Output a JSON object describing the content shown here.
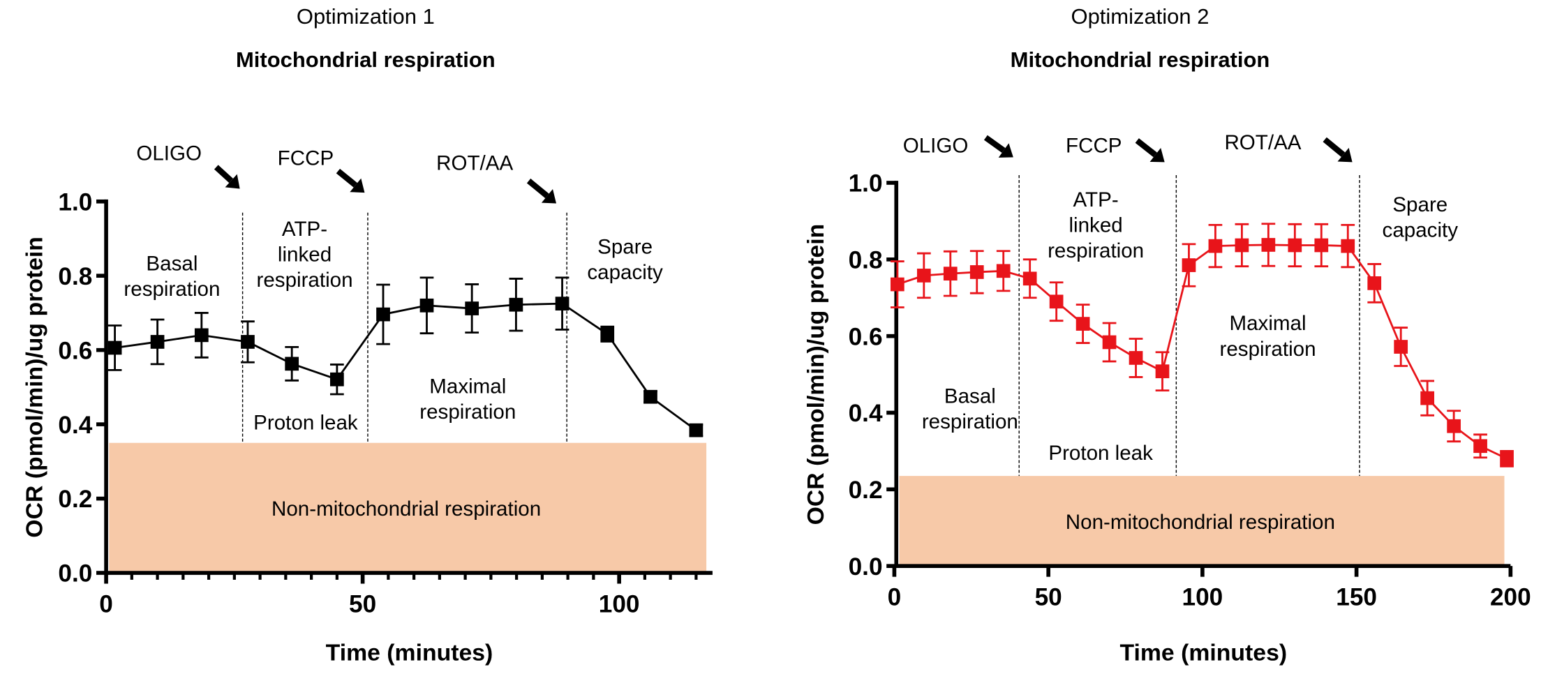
{
  "chart_data": [
    {
      "type": "line",
      "title": "Optimization 1",
      "subtitle": "Mitochondrial respiration",
      "xlabel": "Time (minutes)",
      "ylabel": "OCR (pmol/min)/ug protein",
      "xlim": [
        0,
        118
      ],
      "ylim": [
        0,
        1.0
      ],
      "xticks": [
        0,
        50,
        100
      ],
      "yticks": [
        0.0,
        0.2,
        0.4,
        0.6,
        0.8,
        1.0
      ],
      "ytick_labels": [
        "0.0",
        "0.2",
        "0.4",
        "0.6",
        "0.8",
        "1.0"
      ],
      "grid": false,
      "color": "#000000",
      "series": [
        {
          "x": [
            1.7,
            10,
            18.6,
            27.6,
            36.2,
            45,
            54,
            62.5,
            71.3,
            79.9,
            88.9,
            97.7,
            106.1,
            115
          ],
          "y": [
            0.606,
            0.622,
            0.64,
            0.622,
            0.563,
            0.521,
            0.696,
            0.72,
            0.712,
            0.722,
            0.725,
            0.643,
            0.474,
            0.384
          ],
          "error": [
            0.06,
            0.06,
            0.06,
            0.055,
            0.045,
            0.04,
            0.08,
            0.075,
            0.065,
            0.07,
            0.07,
            0.02,
            0.015,
            0.015
          ]
        }
      ],
      "injections": [
        {
          "label": "OLIGO",
          "x": 26.6
        },
        {
          "label": "FCCP",
          "x": 51
        },
        {
          "label": "ROT/AA",
          "x": 89.8
        }
      ],
      "band": {
        "label": "Non-mitochondrial respiration",
        "y_top": 0.35,
        "x_end": 117,
        "color": "#f7c9a8"
      },
      "regions": {
        "basal": [
          "Basal",
          "respiration"
        ],
        "atp": [
          "ATP-",
          "linked",
          "respiration"
        ],
        "proton": [
          "Proton leak"
        ],
        "maximal": [
          "Maximal",
          "respiration"
        ],
        "spare": [
          "Spare",
          "capacity"
        ]
      }
    },
    {
      "type": "line",
      "title": "Optimization 2",
      "subtitle": "Mitochondrial respiration",
      "xlabel": "Time (minutes)",
      "ylabel": "OCR (pmol/min)/ug protein",
      "xlim": [
        0,
        200
      ],
      "ylim": [
        0,
        1.0
      ],
      "xticks": [
        0,
        50,
        100,
        150,
        200
      ],
      "yticks": [
        0.0,
        0.2,
        0.4,
        0.6,
        0.8,
        1.0
      ],
      "ytick_labels": [
        "0.0",
        "0.2",
        "0.4",
        "0.6",
        "0.8",
        "1.0"
      ],
      "grid": false,
      "color": "#e8141a",
      "series": [
        {
          "x": [
            1,
            9.6,
            18.2,
            26.8,
            35.4,
            44,
            52.6,
            61.2,
            69.8,
            78.4,
            87,
            95.6,
            104.2,
            112.8,
            121.4,
            130,
            138.6,
            147.2,
            155.8,
            164.4,
            173,
            181.6,
            190.2,
            198.8
          ],
          "y": [
            0.735,
            0.758,
            0.763,
            0.767,
            0.77,
            0.75,
            0.69,
            0.632,
            0.584,
            0.543,
            0.508,
            0.785,
            0.835,
            0.837,
            0.838,
            0.837,
            0.837,
            0.835,
            0.738,
            0.572,
            0.438,
            0.365,
            0.313,
            0.28
          ],
          "error": [
            0.06,
            0.058,
            0.058,
            0.055,
            0.052,
            0.05,
            0.05,
            0.05,
            0.05,
            0.05,
            0.05,
            0.055,
            0.055,
            0.055,
            0.055,
            0.055,
            0.055,
            0.055,
            0.05,
            0.05,
            0.045,
            0.04,
            0.03,
            0.02
          ]
        }
      ],
      "injections": [
        {
          "label": "OLIGO",
          "x": 40.5
        },
        {
          "label": "FCCP",
          "x": 91.5
        },
        {
          "label": "ROT/AA",
          "x": 151
        }
      ],
      "band": {
        "label": "Non-mitochondrial respiration",
        "y_top": 0.235,
        "x_end": 198,
        "color": "#f7c9a8"
      },
      "regions": {
        "basal": [
          "Basal",
          "respiration"
        ],
        "atp": [
          "ATP-",
          "linked",
          "respiration"
        ],
        "proton": [
          "Proton leak"
        ],
        "maximal": [
          "Maximal",
          "respiration"
        ],
        "spare": [
          "Spare",
          "capacity"
        ]
      }
    }
  ]
}
